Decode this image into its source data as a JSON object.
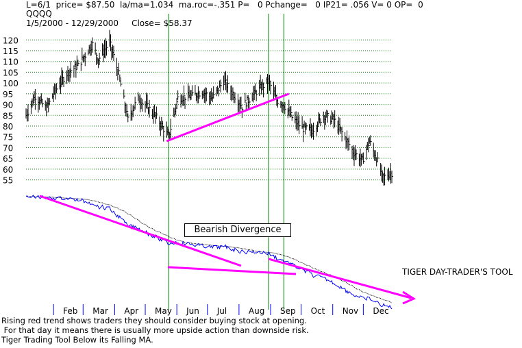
{
  "header": {
    "line1": "L=6/1  price= $87.50  la/ma=1.034  ma.roc=-.351 P=   0 Pchange=   0 IP21= .056 V= 0 OP=  0",
    "symbol": "QQQQ",
    "line3": "1/5/2000 - 12/29/2000     Close= $58.37"
  },
  "colors": {
    "price_bars": "#000000",
    "gridlines": "#008000",
    "vertical_markers": "#008000",
    "trendlines": "#ff00ff",
    "indicator": "#0000ff",
    "indicator_ma": "#000000",
    "axis_ticks": "#0000ff"
  },
  "annotation_box": "Bearish Divergence",
  "tool_label": "TIGER DAY-TRADER'S TOOL",
  "footer": {
    "line1": "Rising red trend shows traders they should consider buying stock at opening.",
    "line2": " For that day it means there is usually more upside action than downside risk.",
    "line3": "Tiger Trading Tool Below its Falling MA."
  },
  "chart_data": {
    "type": "bar",
    "subtype": "OHLC price chart with indicator panel",
    "x_range": [
      "2000-01-05",
      "2000-12-29"
    ],
    "month_labels": [
      "Feb",
      "Mar",
      "Apr",
      "May",
      "Jun",
      "Jul",
      "Aug",
      "Sep",
      "Oct",
      "Nov",
      "Dec"
    ],
    "y_ticks": [
      120,
      115,
      110,
      105,
      100,
      95,
      90,
      85,
      80,
      75,
      70,
      65,
      60,
      55
    ],
    "ylim": [
      52,
      122
    ],
    "grid": true,
    "vertical_markers": [
      "2000-05-24",
      "2000-08-30",
      "2000-09-14"
    ],
    "price_series": [
      {
        "date": "2000-01-05",
        "value": 85
      },
      {
        "date": "2000-01-14",
        "value": 94
      },
      {
        "date": "2000-01-25",
        "value": 88
      },
      {
        "date": "2000-02-02",
        "value": 96
      },
      {
        "date": "2000-02-15",
        "value": 105
      },
      {
        "date": "2000-02-25",
        "value": 108
      },
      {
        "date": "2000-03-10",
        "value": 118
      },
      {
        "date": "2000-03-16",
        "value": 111
      },
      {
        "date": "2000-03-27",
        "value": 119
      },
      {
        "date": "2000-04-05",
        "value": 104
      },
      {
        "date": "2000-04-14",
        "value": 83
      },
      {
        "date": "2000-04-24",
        "value": 93
      },
      {
        "date": "2000-05-05",
        "value": 88
      },
      {
        "date": "2000-05-12",
        "value": 84
      },
      {
        "date": "2000-05-24",
        "value": 75
      },
      {
        "date": "2000-06-02",
        "value": 93
      },
      {
        "date": "2000-06-16",
        "value": 94
      },
      {
        "date": "2000-06-26",
        "value": 96
      },
      {
        "date": "2000-07-06",
        "value": 93
      },
      {
        "date": "2000-07-17",
        "value": 101
      },
      {
        "date": "2000-07-28",
        "value": 94
      },
      {
        "date": "2000-08-04",
        "value": 89
      },
      {
        "date": "2000-08-16",
        "value": 95
      },
      {
        "date": "2000-08-30",
        "value": 101
      },
      {
        "date": "2000-09-07",
        "value": 92
      },
      {
        "date": "2000-09-14",
        "value": 90
      },
      {
        "date": "2000-09-22",
        "value": 84
      },
      {
        "date": "2000-10-02",
        "value": 79
      },
      {
        "date": "2000-10-12",
        "value": 78
      },
      {
        "date": "2000-10-23",
        "value": 85
      },
      {
        "date": "2000-11-02",
        "value": 83
      },
      {
        "date": "2000-11-14",
        "value": 74
      },
      {
        "date": "2000-11-21",
        "value": 68
      },
      {
        "date": "2000-11-30",
        "value": 64
      },
      {
        "date": "2000-12-07",
        "value": 73
      },
      {
        "date": "2000-12-14",
        "value": 65
      },
      {
        "date": "2000-12-20",
        "value": 56
      },
      {
        "date": "2000-12-29",
        "value": 58.37
      }
    ],
    "price_trendlines": [
      {
        "from": {
          "date": "2000-05-22",
          "value": 73
        },
        "to": {
          "date": "2000-09-19",
          "value": 95
        }
      }
    ]
  }
}
